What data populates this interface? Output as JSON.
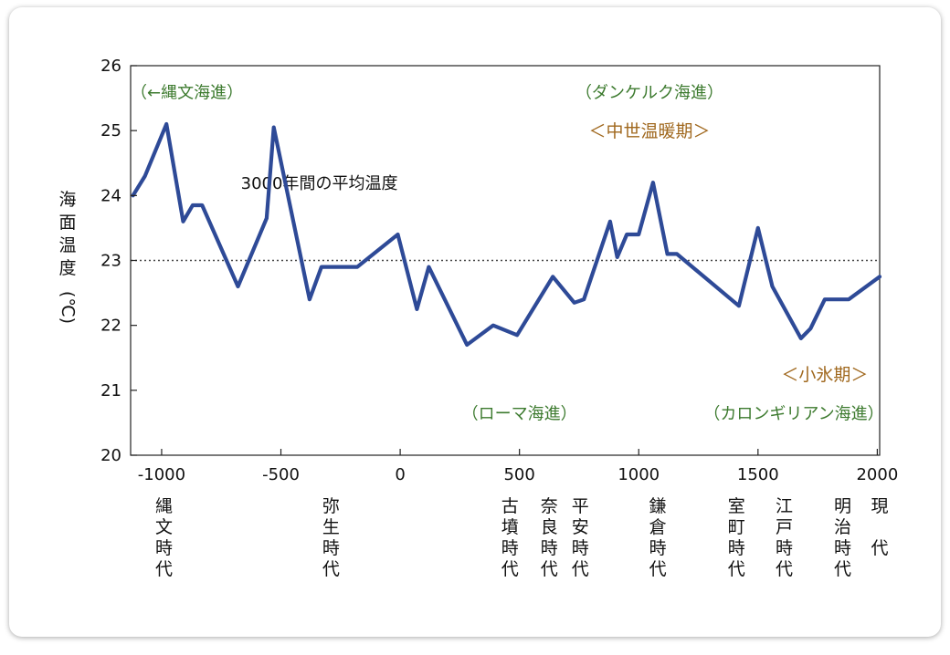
{
  "chart_data": {
    "type": "line",
    "ylabel": "海面温度(℃)",
    "ylim": [
      20,
      26
    ],
    "xlim": [
      -1130,
      2010
    ],
    "yticks": [
      20,
      21,
      22,
      23,
      24,
      25,
      26
    ],
    "xticks": [
      -1000,
      -500,
      0,
      500,
      1000,
      1500,
      2000
    ],
    "xtick_labels": [
      "-1000",
      "-500",
      "0",
      "500",
      "1000",
      "1500",
      "2000"
    ],
    "average": {
      "value": 23.0,
      "label": "3000年間の平均温度"
    },
    "series": [
      {
        "x": [
          -1120,
          -1070,
          -980,
          -910,
          -870,
          -830,
          -680,
          -560,
          -530,
          -380,
          -330,
          -180,
          -10,
          70,
          120,
          280,
          390,
          490,
          640,
          730,
          770,
          880,
          910,
          950,
          1000,
          1060,
          1120,
          1160,
          1420,
          1500,
          1560,
          1680,
          1720,
          1780,
          1880,
          2010
        ],
        "y": [
          24.0,
          24.3,
          25.1,
          23.6,
          23.85,
          23.85,
          22.6,
          23.65,
          25.05,
          22.4,
          22.9,
          22.9,
          23.4,
          22.25,
          22.9,
          21.7,
          22.0,
          21.85,
          22.75,
          22.35,
          22.4,
          23.6,
          23.05,
          23.4,
          23.4,
          24.2,
          23.1,
          23.1,
          22.3,
          23.5,
          22.6,
          21.8,
          21.95,
          22.4,
          22.4,
          22.75
        ]
      }
    ],
    "annotations": [
      {
        "text": "（←縄文海進）",
        "x": -1130,
        "y": 25.6,
        "style": "green"
      },
      {
        "text": "（ダンケルク海進）",
        "x": 1045,
        "y": 25.6,
        "style": "green"
      },
      {
        "text": "＜中世温暖期＞",
        "x": 1045,
        "y": 25.0,
        "style": "orange"
      },
      {
        "text": "＜小氷期＞",
        "x": 1780,
        "y": 21.25,
        "style": "orange"
      },
      {
        "text": "（ローマ海進）",
        "x": 500,
        "y": 20.65,
        "style": "green"
      },
      {
        "text": "（カロンギリアン海進）",
        "x": 1650,
        "y": 20.65,
        "style": "green"
      }
    ],
    "eras": [
      {
        "label": "縄文時代",
        "x": -990
      },
      {
        "label": "弥生時代",
        "x": -290
      },
      {
        "label": "古墳時代",
        "x": 460
      },
      {
        "label": "奈良時代",
        "x": 625
      },
      {
        "label": "平安時代",
        "x": 755
      },
      {
        "label": "鎌倉時代",
        "x": 1080
      },
      {
        "label": "室町時代",
        "x": 1410
      },
      {
        "label": "江戸時代",
        "x": 1610
      },
      {
        "label": "明治時代",
        "x": 1855
      },
      {
        "label": "現　代",
        "x": 2010
      }
    ],
    "line_color": "#2e4a97",
    "average_line_color": "#444444"
  }
}
